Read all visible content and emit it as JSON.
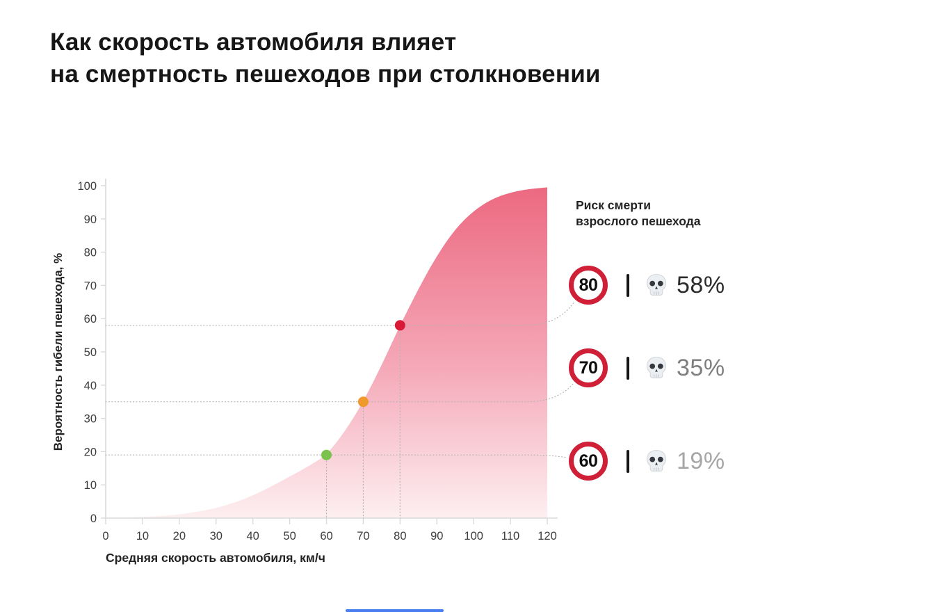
{
  "title": {
    "line1": "Как скорость автомобиля влияет",
    "line2": "на смертность пешеходов при столкновении"
  },
  "chart_data": {
    "type": "area",
    "title": "Как скорость автомобиля влияет на смертность пешеходов при столкновении",
    "xlabel": "Средняя скорость автомобиля, км/ч",
    "ylabel": "Вероятность гибели пешехода, %",
    "xlim": [
      0,
      120
    ],
    "ylim": [
      0,
      100
    ],
    "x_ticks": [
      0,
      10,
      20,
      30,
      40,
      50,
      60,
      70,
      80,
      90,
      100,
      110,
      120
    ],
    "y_ticks": [
      0,
      10,
      20,
      30,
      40,
      50,
      60,
      70,
      80,
      90,
      100
    ],
    "grid": "dotted guides at highlighted points only",
    "legend_position": "right",
    "curve": [
      [
        0,
        0
      ],
      [
        5,
        0.1
      ],
      [
        10,
        0.3
      ],
      [
        15,
        0.6
      ],
      [
        20,
        1.1
      ],
      [
        25,
        1.9
      ],
      [
        30,
        3.0
      ],
      [
        35,
        4.6
      ],
      [
        40,
        6.8
      ],
      [
        45,
        9.5
      ],
      [
        50,
        12.5
      ],
      [
        55,
        15.5
      ],
      [
        60,
        19
      ],
      [
        65,
        26
      ],
      [
        70,
        35
      ],
      [
        75,
        46
      ],
      [
        80,
        58
      ],
      [
        85,
        69
      ],
      [
        90,
        79
      ],
      [
        95,
        87
      ],
      [
        100,
        92.5
      ],
      [
        105,
        96
      ],
      [
        110,
        98
      ],
      [
        115,
        99
      ],
      [
        120,
        99.5
      ]
    ],
    "points": [
      {
        "speed": 60,
        "risk": 19,
        "color": "#79c24c"
      },
      {
        "speed": 70,
        "risk": 35,
        "color": "#f09a2e"
      },
      {
        "speed": 80,
        "risk": 58,
        "color": "#d81a38"
      }
    ],
    "area_gradient": {
      "top": "#ec6981",
      "mid": "#f5a9b8",
      "bottom": "#fdeff1"
    },
    "axis_color": "#d9d9d9",
    "tick_label_color": "#3c3c3c",
    "guide_color": "#b3b3b3"
  },
  "legend": {
    "title_line1": "Риск смерти",
    "title_line2": "взрослого пешехода",
    "sign_ring_color": "#cf2038",
    "rows": [
      {
        "speed_sign": "80",
        "icon": "skull-icon",
        "percent": "58%",
        "percent_color": "#2b2b2b"
      },
      {
        "speed_sign": "70",
        "icon": "skull-icon",
        "percent": "35%",
        "percent_color": "#7f7f7f"
      },
      {
        "speed_sign": "60",
        "icon": "skull-icon",
        "percent": "19%",
        "percent_color": "#a6a6a6"
      }
    ]
  },
  "footer": {
    "strip_color": "#4a7df0"
  }
}
